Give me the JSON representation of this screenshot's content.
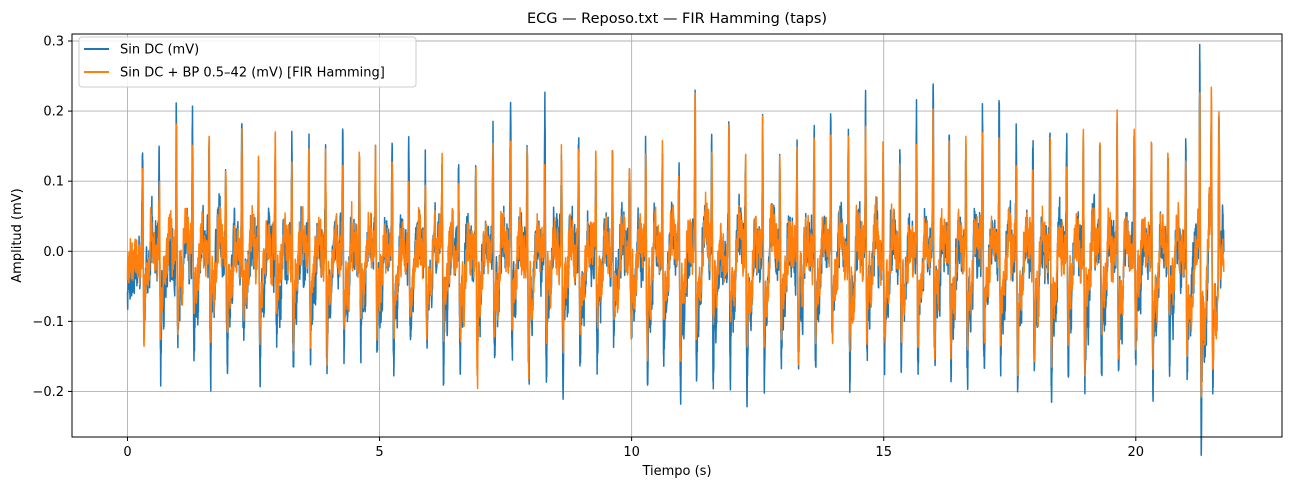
{
  "chart_data": {
    "type": "line",
    "title": "ECG — Reposo.txt — FIR Hamming (taps)",
    "xlabel": "Tiempo (s)",
    "ylabel": "Amplitud (mV)",
    "xlim": [
      -1.1,
      22.9
    ],
    "ylim": [
      -0.265,
      0.31
    ],
    "xticks": [
      0,
      5,
      10,
      15,
      20
    ],
    "xtick_labels": [
      "0",
      "5",
      "10",
      "15",
      "20"
    ],
    "yticks": [
      -0.2,
      -0.1,
      0.0,
      0.1,
      0.2,
      0.3
    ],
    "ytick_labels": [
      "−0.2",
      "−0.1",
      "0.0",
      "0.1",
      "0.2",
      "0.3"
    ],
    "grid": true,
    "legend_position": "upper-left",
    "signal": {
      "t_start": 0,
      "t_end": 21.75,
      "beat_times": [
        0.0,
        0.3,
        0.63,
        0.97,
        1.29,
        1.62,
        1.95,
        2.27,
        2.6,
        2.93,
        3.26,
        3.6,
        3.93,
        4.27,
        4.6,
        4.92,
        5.25,
        5.58,
        5.91,
        6.24,
        6.57,
        6.91,
        7.25,
        7.6,
        7.93,
        8.28,
        8.61,
        8.95,
        9.29,
        9.62,
        9.96,
        10.28,
        10.61,
        10.94,
        11.26,
        11.59,
        11.93,
        12.26,
        12.6,
        12.94,
        13.28,
        13.62,
        13.95,
        14.3,
        14.64,
        14.99,
        15.32,
        15.65,
        15.98,
        16.3,
        16.63,
        16.96,
        17.29,
        17.63,
        17.96,
        18.3,
        18.63,
        18.96,
        19.29,
        19.63,
        19.97,
        20.31,
        20.64,
        20.99,
        21.27,
        21.5,
        21.65
      ],
      "r_peaks_raw": [
        -0.04,
        0.17,
        0.14,
        0.2,
        0.18,
        0.19,
        0.14,
        0.19,
        0.17,
        0.17,
        0.17,
        0.19,
        0.17,
        0.18,
        0.16,
        0.15,
        0.16,
        0.13,
        0.14,
        0.13,
        0.14,
        0.17,
        0.2,
        0.21,
        0.16,
        0.19,
        0.17,
        0.17,
        0.16,
        0.15,
        0.14,
        0.15,
        0.15,
        0.13,
        0.24,
        0.16,
        0.21,
        0.16,
        0.21,
        0.14,
        0.15,
        0.18,
        0.21,
        0.19,
        0.2,
        0.17,
        0.15,
        0.19,
        0.22,
        0.19,
        0.17,
        0.21,
        0.21,
        0.17,
        0.18,
        0.2,
        0.18,
        0.2,
        0.19,
        0.19,
        0.18,
        0.19,
        0.18,
        0.19,
        0.3,
        0.19,
        0.21
      ],
      "s_troughs_raw": [
        -0.06,
        -0.1,
        -0.14,
        -0.1,
        -0.12,
        -0.14,
        -0.13,
        -0.12,
        -0.14,
        -0.13,
        -0.12,
        -0.14,
        -0.13,
        -0.14,
        -0.12,
        -0.13,
        -0.14,
        -0.12,
        -0.13,
        -0.14,
        -0.13,
        -0.14,
        -0.13,
        -0.12,
        -0.14,
        -0.13,
        -0.13,
        -0.14,
        -0.13,
        -0.12,
        -0.13,
        -0.14,
        -0.13,
        -0.17,
        -0.16,
        -0.14,
        -0.13,
        -0.15,
        -0.14,
        -0.14,
        -0.13,
        -0.14,
        -0.13,
        -0.15,
        -0.14,
        -0.13,
        -0.14,
        -0.13,
        -0.14,
        -0.15,
        -0.14,
        -0.13,
        -0.14,
        -0.18,
        -0.16,
        -0.15,
        -0.14,
        -0.16,
        -0.14,
        -0.15,
        -0.14,
        -0.16,
        -0.14,
        -0.17,
        -0.24,
        -0.16,
        -0.05
      ],
      "r_peaks_filtered": [
        -0.03,
        0.14,
        0.12,
        0.17,
        0.14,
        0.16,
        0.12,
        0.16,
        0.14,
        0.15,
        0.14,
        0.16,
        0.14,
        0.15,
        0.13,
        0.13,
        0.14,
        0.12,
        0.12,
        0.12,
        0.12,
        0.15,
        0.17,
        0.18,
        0.14,
        0.16,
        0.15,
        0.15,
        0.14,
        0.13,
        0.12,
        0.13,
        0.13,
        0.12,
        0.22,
        0.14,
        0.19,
        0.14,
        0.19,
        0.12,
        0.13,
        0.16,
        0.19,
        0.17,
        0.17,
        0.15,
        0.13,
        0.17,
        0.2,
        0.17,
        0.15,
        0.18,
        0.18,
        0.15,
        0.16,
        0.17,
        0.16,
        0.18,
        0.16,
        0.17,
        0.16,
        0.17,
        0.16,
        0.17,
        0.26,
        0.17,
        0.18
      ],
      "s_troughs_filtered": [
        -0.04,
        -0.08,
        -0.1,
        -0.08,
        -0.09,
        -0.1,
        -0.1,
        -0.09,
        -0.1,
        -0.1,
        -0.09,
        -0.1,
        -0.1,
        -0.1,
        -0.09,
        -0.1,
        -0.1,
        -0.09,
        -0.1,
        -0.1,
        -0.1,
        -0.14,
        -0.1,
        -0.09,
        -0.14,
        -0.1,
        -0.1,
        -0.1,
        -0.1,
        -0.09,
        -0.1,
        -0.1,
        -0.1,
        -0.12,
        -0.12,
        -0.1,
        -0.1,
        -0.11,
        -0.1,
        -0.1,
        -0.1,
        -0.1,
        -0.1,
        -0.11,
        -0.1,
        -0.1,
        -0.1,
        -0.1,
        -0.1,
        -0.13,
        -0.1,
        -0.1,
        -0.1,
        -0.13,
        -0.12,
        -0.11,
        -0.1,
        -0.14,
        -0.1,
        -0.11,
        -0.1,
        -0.12,
        -0.1,
        -0.13,
        -0.17,
        -0.15,
        -0.04
      ]
    },
    "series": [
      {
        "name": "Sin DC (mV)",
        "color": "#1f77b4",
        "kind": "raw"
      },
      {
        "name": "Sin DC + BP 0.5–42 (mV) [FIR Hamming]",
        "color": "#ff7f0e",
        "kind": "filtered"
      }
    ]
  }
}
